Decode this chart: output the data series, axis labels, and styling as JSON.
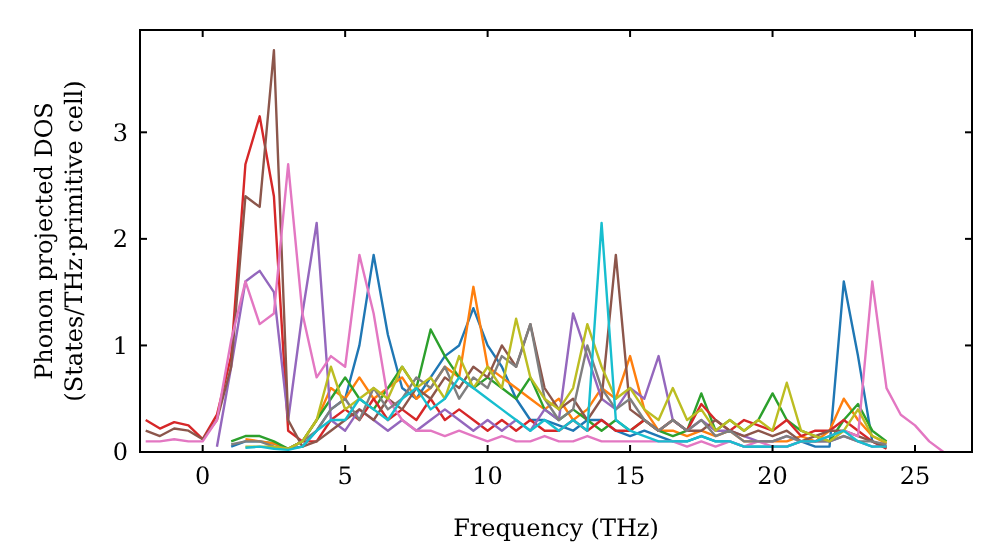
{
  "chart_data": {
    "type": "line",
    "xlabel": "Frequency (THz)",
    "ylabel": "Phonon projected DOS\n(States/THz·primitive cell)",
    "xlim": [
      -2.2,
      27
    ],
    "ylim": [
      0,
      3.96
    ],
    "xticks": [
      0,
      5,
      10,
      15,
      20,
      25
    ],
    "yticks": [
      0,
      1,
      2,
      3
    ],
    "x": [
      -2,
      -1.5,
      -1,
      -0.5,
      0,
      0.5,
      1,
      1.5,
      2,
      2.5,
      3,
      3.5,
      4,
      4.5,
      5,
      5.5,
      6,
      6.5,
      7,
      7.5,
      8,
      8.5,
      9,
      9.5,
      10,
      10.5,
      11,
      11.5,
      12,
      12.5,
      13,
      13.5,
      14,
      14.5,
      15,
      15.5,
      16,
      16.5,
      17,
      17.5,
      18,
      18.5,
      19,
      19.5,
      20,
      20.5,
      21,
      21.5,
      22,
      22.5,
      23,
      23.5,
      24,
      24.5,
      25,
      25.5,
      26
    ],
    "series": [
      {
        "color": "#1f77b4",
        "values": [
          null,
          null,
          null,
          null,
          null,
          null,
          0.05,
          0.1,
          0.1,
          0.08,
          0.03,
          0.05,
          0.2,
          0.4,
          0.5,
          1.0,
          1.85,
          1.1,
          0.6,
          0.5,
          0.7,
          0.9,
          1.0,
          1.35,
          1.0,
          0.8,
          0.5,
          0.3,
          0.3,
          0.25,
          0.2,
          0.3,
          0.3,
          0.2,
          0.15,
          0.2,
          0.15,
          0.1,
          0.1,
          0.15,
          0.1,
          0.1,
          0.05,
          0.05,
          0.05,
          0.05,
          0.1,
          0.05,
          0.05,
          1.6,
          0.9,
          0.1,
          0.05,
          null,
          null,
          null,
          null
        ]
      },
      {
        "color": "#ff7f0e",
        "values": [
          null,
          null,
          null,
          null,
          null,
          null,
          null,
          0.12,
          0.1,
          0.08,
          0.03,
          0.1,
          0.3,
          0.6,
          0.5,
          0.7,
          0.5,
          0.6,
          0.7,
          0.5,
          0.6,
          0.8,
          0.7,
          1.55,
          0.8,
          0.7,
          0.6,
          0.5,
          0.4,
          0.5,
          0.3,
          0.4,
          0.6,
          0.5,
          0.9,
          0.4,
          0.2,
          0.2,
          0.15,
          0.2,
          0.15,
          0.2,
          0.1,
          0.1,
          0.1,
          0.1,
          0.15,
          0.1,
          0.2,
          0.5,
          0.3,
          0.15,
          0.08,
          null,
          null,
          null,
          null
        ]
      },
      {
        "color": "#2ca02c",
        "values": [
          null,
          null,
          null,
          null,
          null,
          null,
          0.1,
          0.15,
          0.15,
          0.1,
          0.03,
          0.1,
          0.3,
          0.5,
          0.7,
          0.5,
          0.4,
          0.6,
          0.8,
          0.6,
          1.15,
          0.9,
          0.7,
          0.6,
          0.7,
          0.6,
          0.5,
          0.7,
          0.4,
          0.3,
          0.4,
          0.3,
          0.2,
          0.3,
          0.2,
          0.3,
          0.2,
          0.15,
          0.2,
          0.55,
          0.2,
          0.3,
          0.2,
          0.3,
          0.55,
          0.3,
          0.2,
          0.15,
          0.1,
          0.3,
          0.45,
          0.2,
          0.1,
          null,
          null,
          null,
          null
        ]
      },
      {
        "color": "#d62728",
        "values": [
          0.3,
          0.22,
          0.28,
          0.25,
          0.12,
          0.35,
          0.9,
          2.7,
          3.15,
          2.4,
          0.2,
          0.1,
          0.1,
          0.3,
          0.4,
          0.3,
          0.5,
          0.3,
          0.4,
          0.3,
          0.5,
          0.3,
          0.4,
          0.3,
          0.2,
          0.3,
          0.2,
          0.3,
          0.2,
          0.2,
          0.3,
          0.2,
          0.3,
          0.2,
          0.2,
          0.3,
          0.2,
          0.3,
          0.2,
          0.45,
          0.3,
          0.2,
          0.3,
          0.25,
          0.2,
          0.3,
          0.15,
          0.2,
          0.2,
          0.3,
          0.2,
          0.1,
          0.03,
          null,
          null,
          null,
          null
        ]
      },
      {
        "color": "#9467bd",
        "values": [
          null,
          null,
          null,
          null,
          null,
          0.05,
          0.8,
          1.6,
          1.7,
          1.5,
          0.3,
          1.3,
          2.15,
          0.3,
          0.2,
          0.4,
          0.3,
          0.2,
          0.3,
          0.2,
          0.3,
          0.4,
          0.3,
          0.2,
          0.3,
          0.2,
          0.3,
          0.2,
          0.4,
          0.3,
          1.3,
          0.9,
          0.5,
          0.4,
          0.6,
          0.5,
          0.9,
          0.3,
          0.2,
          0.3,
          0.2,
          0.2,
          0.15,
          0.1,
          0.1,
          0.15,
          0.1,
          0.1,
          0.1,
          0.15,
          0.1,
          0.05,
          0.06,
          null,
          null,
          null,
          null
        ]
      },
      {
        "color": "#8c564b",
        "values": [
          0.2,
          0.15,
          0.22,
          0.2,
          0.12,
          0.3,
          0.8,
          2.4,
          2.3,
          3.77,
          0.3,
          0.05,
          0.1,
          0.2,
          0.3,
          0.4,
          0.3,
          0.5,
          0.4,
          0.6,
          0.5,
          0.7,
          0.6,
          0.8,
          0.7,
          1.0,
          0.8,
          1.2,
          0.6,
          0.4,
          0.5,
          0.3,
          0.5,
          1.85,
          0.4,
          0.3,
          0.2,
          0.3,
          0.2,
          0.2,
          0.3,
          0.2,
          0.15,
          0.2,
          0.15,
          0.2,
          0.1,
          0.15,
          0.2,
          0.2,
          0.15,
          0.1,
          0.04,
          null,
          null,
          null,
          null
        ]
      },
      {
        "color": "#e377c2",
        "values": [
          0.1,
          0.1,
          0.12,
          0.1,
          0.1,
          0.3,
          1.05,
          1.6,
          1.2,
          1.3,
          2.7,
          1.3,
          0.7,
          0.9,
          0.8,
          1.85,
          1.3,
          0.5,
          0.3,
          0.2,
          0.2,
          0.15,
          0.2,
          0.15,
          0.1,
          0.15,
          0.1,
          0.1,
          0.15,
          0.1,
          0.1,
          0.15,
          0.1,
          0.1,
          0.1,
          0.1,
          0.1,
          0.1,
          0.05,
          0.1,
          0.05,
          0.1,
          0.05,
          0.1,
          0.05,
          0.05,
          0.1,
          0.1,
          0.15,
          0.2,
          0.15,
          1.6,
          0.6,
          0.35,
          0.25,
          0.1,
          0.0
        ]
      },
      {
        "color": "#7f7f7f",
        "values": [
          null,
          null,
          null,
          null,
          null,
          null,
          0.07,
          0.1,
          0.1,
          0.05,
          0.03,
          0.1,
          0.2,
          0.4,
          0.5,
          0.3,
          0.6,
          0.4,
          0.5,
          0.7,
          0.6,
          0.8,
          0.5,
          0.7,
          0.6,
          0.9,
          0.8,
          1.2,
          0.5,
          0.3,
          0.4,
          1.0,
          0.6,
          0.4,
          0.5,
          0.3,
          0.2,
          0.3,
          0.2,
          0.3,
          0.15,
          0.2,
          0.1,
          0.1,
          0.1,
          0.15,
          0.1,
          0.1,
          0.1,
          0.15,
          0.1,
          0.1,
          0.07,
          null,
          null,
          null,
          null
        ]
      },
      {
        "color": "#bcbd22",
        "values": [
          null,
          null,
          null,
          null,
          null,
          null,
          null,
          0.05,
          0.05,
          0.05,
          0.03,
          0.1,
          0.3,
          0.8,
          0.4,
          0.5,
          0.6,
          0.5,
          0.8,
          0.6,
          0.7,
          0.5,
          0.9,
          0.6,
          0.8,
          0.6,
          1.25,
          0.7,
          0.5,
          0.4,
          0.6,
          1.2,
          0.8,
          0.5,
          0.6,
          0.4,
          0.3,
          0.6,
          0.3,
          0.4,
          0.2,
          0.3,
          0.2,
          0.3,
          0.2,
          0.65,
          0.2,
          0.15,
          0.1,
          0.2,
          0.4,
          0.15,
          0.09,
          null,
          null,
          null,
          null
        ]
      },
      {
        "color": "#17becf",
        "values": [
          null,
          null,
          null,
          null,
          null,
          null,
          null,
          0.04,
          0.05,
          0.03,
          0.02,
          0.05,
          0.2,
          0.3,
          0.3,
          0.5,
          0.4,
          0.3,
          0.5,
          0.6,
          0.4,
          0.5,
          0.7,
          0.6,
          0.5,
          0.4,
          0.3,
          0.2,
          0.3,
          0.2,
          0.3,
          0.2,
          2.15,
          0.3,
          0.2,
          0.15,
          0.1,
          0.1,
          0.1,
          0.15,
          0.1,
          0.1,
          0.05,
          0.05,
          0.05,
          0.05,
          0.1,
          0.1,
          0.15,
          0.2,
          0.1,
          0.05,
          0.05,
          null,
          null,
          null,
          null
        ]
      }
    ]
  }
}
